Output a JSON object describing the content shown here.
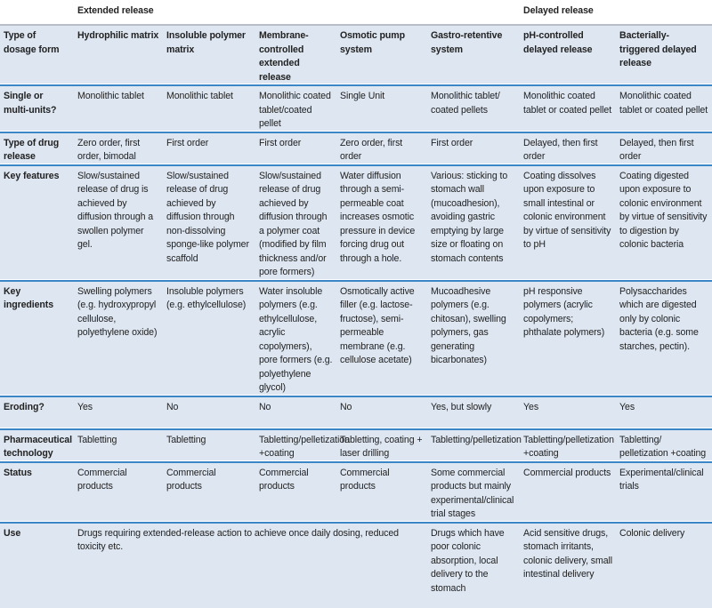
{
  "groups": {
    "extended": "Extended release",
    "delayed": "Delayed release"
  },
  "header": [
    "Type of dosage form",
    "Hydrophilic matrix",
    "Insoluble polymer matrix",
    "Membrane-controlled extended release",
    "Osmotic pump system",
    "Gastro-retentive system",
    "pH-controlled delayed release",
    "Bacterially-triggered delayed release"
  ],
  "rows": [
    [
      "Single or multi-units?",
      "Monolithic tablet",
      "Monolithic tablet",
      "Monolithic coated tablet/coated pellet",
      "Single Unit",
      "Monolithic tablet/ coated pellets",
      "Monolithic coated tablet or coated pellet",
      "Monolithic coated tablet or coated pellet"
    ],
    [
      "Type of drug release",
      "Zero order, first order, bimodal",
      "First order",
      "First order",
      "Zero order, first order",
      "First order",
      "Delayed, then first order",
      "Delayed, then first order"
    ],
    [
      "Key features",
      "Slow/sustained release of drug is achieved by diffusion through a swollen polymer gel.",
      "Slow/sustained release of drug achieved by diffusion through non-dissolving sponge-like polymer scaffold",
      "Slow/sustained release of drug achieved by diffusion through a polymer coat (modified by film thickness and/or pore formers)",
      "Water diffusion through a semi-permeable coat increases osmotic pressure in device forcing drug out through a hole.",
      "Various: sticking to stomach wall (mucoadhesion), avoiding gastric emptying by large size or floating on stomach contents",
      "Coating dissolves upon exposure to small intestinal or colonic environment by virtue of sensitivity to pH",
      "Coating digested upon exposure to colonic environment by virtue of sensitivity to digestion by colonic bacteria"
    ],
    [
      "Key ingredients",
      "Swelling polymers (e.g. hydroxypropyl cellulose, polyethylene oxide)",
      "Insoluble polymers (e.g. ethylcellulose)",
      "Water insoluble polymers (e.g. ethylcellulose, acrylic copolymers), pore formers (e.g. polyethylene glycol)",
      "Osmotically active filler (e.g. lactose-fructose), semi-permeable membrane (e.g. cellulose acetate)",
      "Mucoadhesive polymers (e.g. chitosan), swelling polymers, gas generating bicarbonates)",
      "pH responsive polymers (acrylic copolymers; phthalate polymers)",
      "Polysaccharides which are digested only by colonic bacteria (e.g. some starches, pectin)."
    ],
    [
      "Eroding?",
      "Yes",
      "No",
      "No",
      "No",
      "Yes, but slowly",
      "Yes",
      "Yes"
    ],
    [
      "Pharmaceutical technology",
      "Tabletting",
      "Tabletting",
      "Tabletting/pelletization +coating",
      "Tabletting, coating + laser drilling",
      "Tabletting/pelletization",
      "Tabletting/pelletization +coating",
      "Tabletting/ pelletization +coating"
    ],
    [
      "Status",
      "Commercial products",
      "Commercial products",
      "Commercial products",
      "Commercial products",
      "Some commercial products but mainly experimental/clinical trial stages",
      "Commercial products",
      "Experimental/clinical trials"
    ]
  ],
  "use": {
    "label": "Use",
    "extended": "Drugs requiring extended-release action to achieve once daily dosing, reduced toxicity etc.",
    "gastro": "Drugs which have poor colonic absorption, local delivery to the stomach",
    "ph": "Acid sensitive drugs, stomach irritants, colonic delivery, small intestinal delivery",
    "bacterial": "Colonic delivery"
  }
}
